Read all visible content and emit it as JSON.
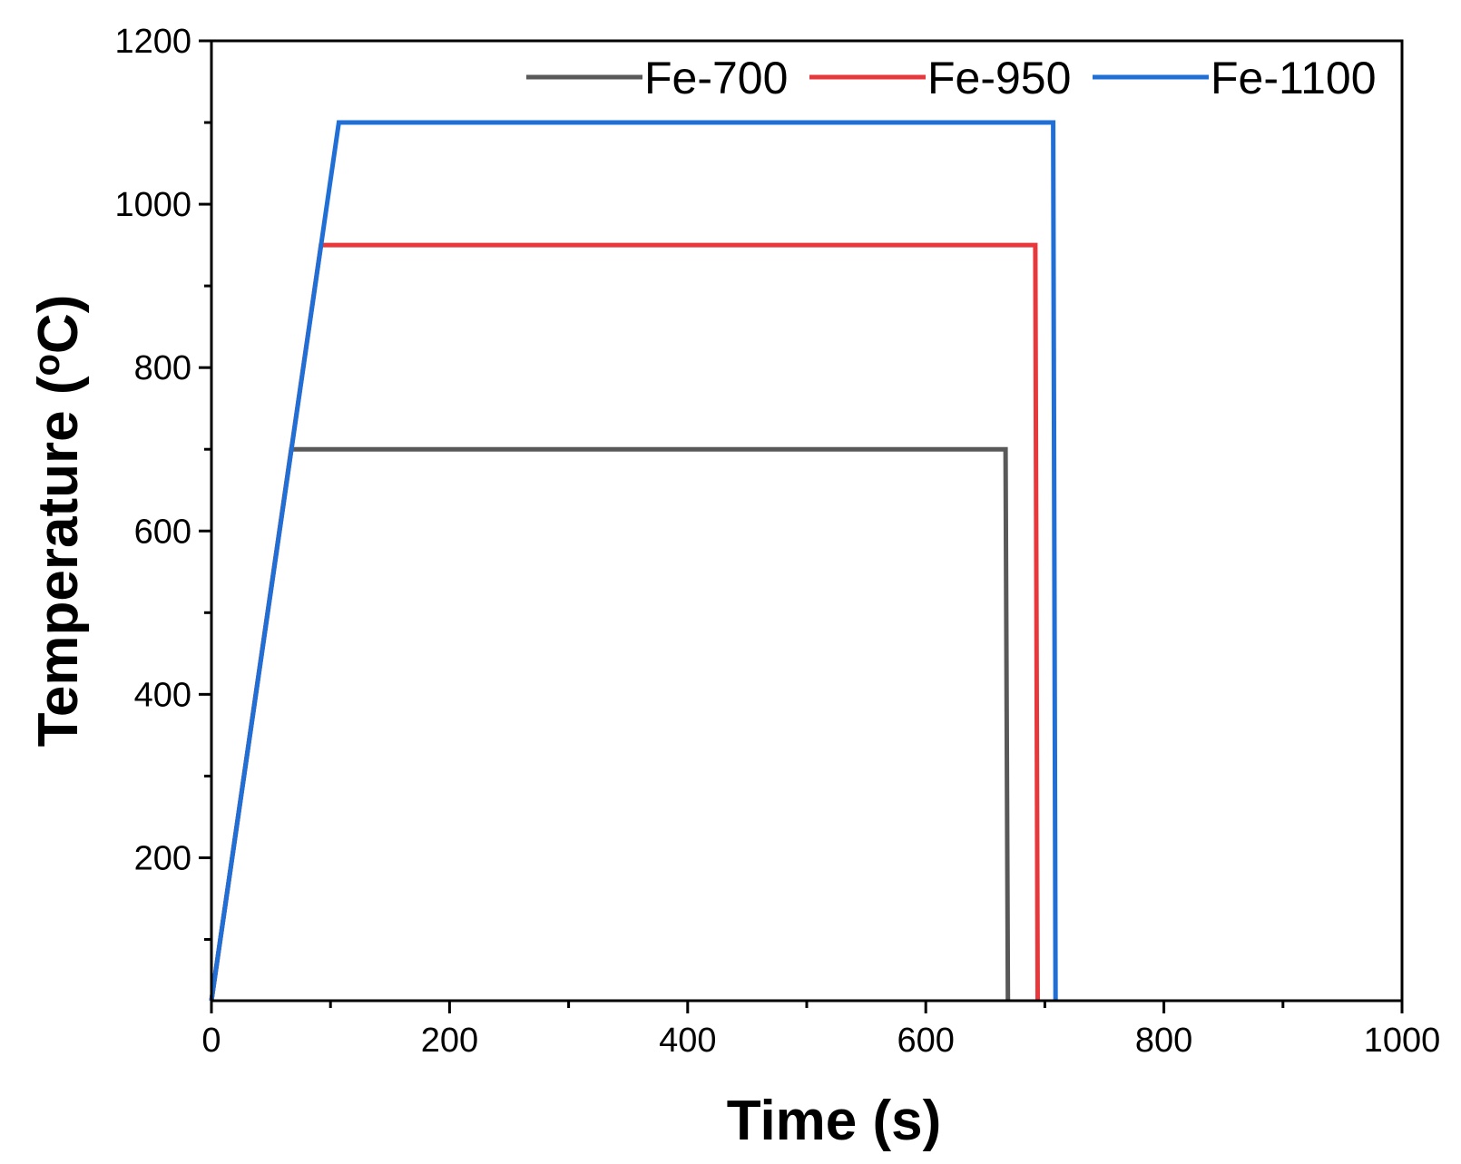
{
  "chart_data": {
    "type": "line",
    "title": "",
    "xlabel": "Time (s)",
    "ylabel_main": "Temperature (",
    "ylabel_sup": "o",
    "ylabel_end": "C)",
    "xlim": [
      0,
      1000
    ],
    "ylim": [
      25,
      1200
    ],
    "x_ticks": [
      0,
      200,
      400,
      600,
      800,
      1000
    ],
    "x_tick_labels": [
      "0",
      "200",
      "400",
      "600",
      "800",
      "1000"
    ],
    "y_ticks": [
      200,
      400,
      600,
      800,
      1000,
      1200
    ],
    "y_tick_labels": [
      "200",
      "400",
      "600",
      "800",
      "1000",
      "1200"
    ],
    "legend_position": "top-right",
    "grid": false,
    "series": [
      {
        "name": "Fe-700",
        "color": "#595959",
        "x": [
          0,
          67,
          667,
          669
        ],
        "y": [
          25,
          700,
          700,
          25
        ]
      },
      {
        "name": "Fe-950",
        "color": "#e8383b",
        "x": [
          0,
          92,
          692,
          694
        ],
        "y": [
          25,
          950,
          950,
          25
        ]
      },
      {
        "name": "Fe-1100",
        "color": "#1f6fd6",
        "x": [
          0,
          107,
          707,
          709
        ],
        "y": [
          25,
          1100,
          1100,
          25
        ]
      }
    ]
  }
}
